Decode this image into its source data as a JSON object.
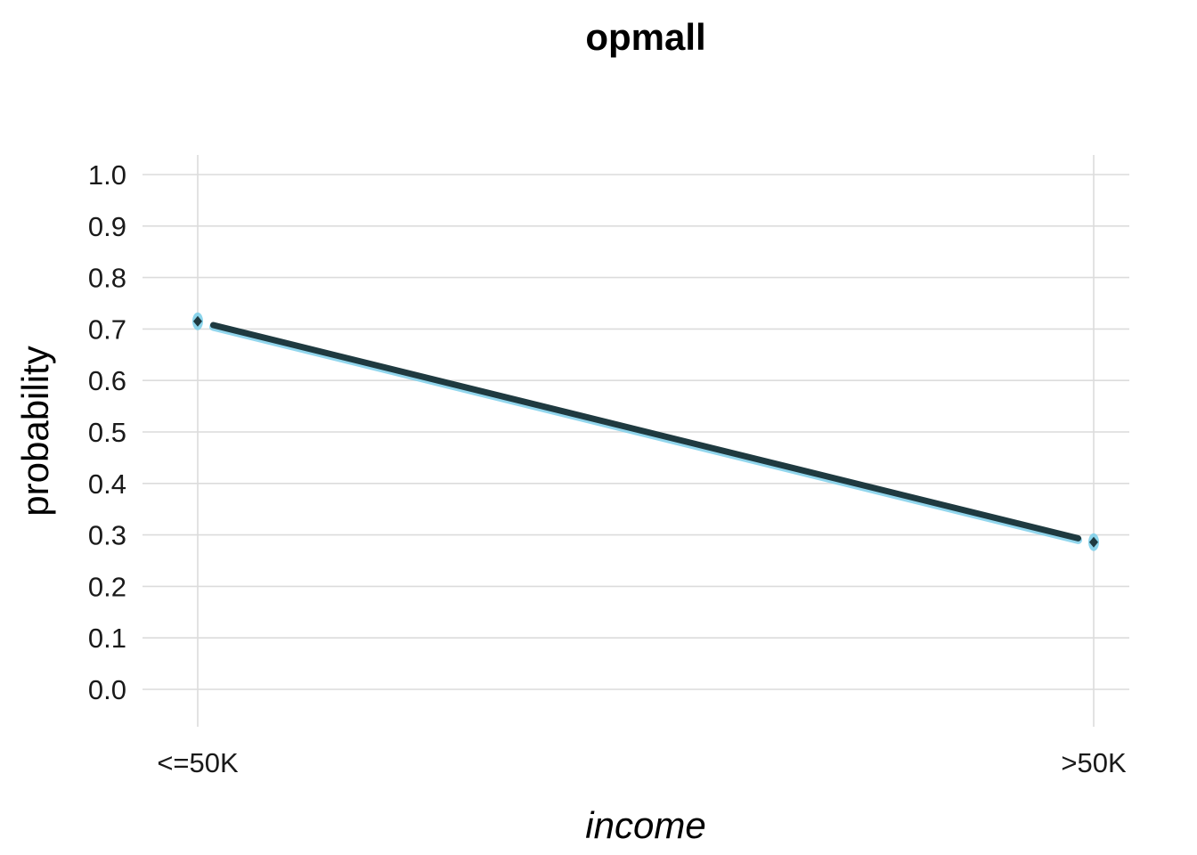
{
  "chart_data": {
    "type": "line",
    "title": "opmall",
    "xlabel": "income",
    "ylabel": "probability",
    "categories": [
      "<=50K",
      ">50K"
    ],
    "ylim": [
      0,
      1
    ],
    "yticks": [
      "0.0",
      "0.1",
      "0.2",
      "0.3",
      "0.4",
      "0.5",
      "0.6",
      "0.7",
      "0.8",
      "0.9",
      "1.0"
    ],
    "series": [
      {
        "values": [
          0.715,
          0.286
        ],
        "color": "#1f3a40",
        "band_color": "#7fd0ea"
      }
    ],
    "grid": true,
    "legend": "none"
  }
}
